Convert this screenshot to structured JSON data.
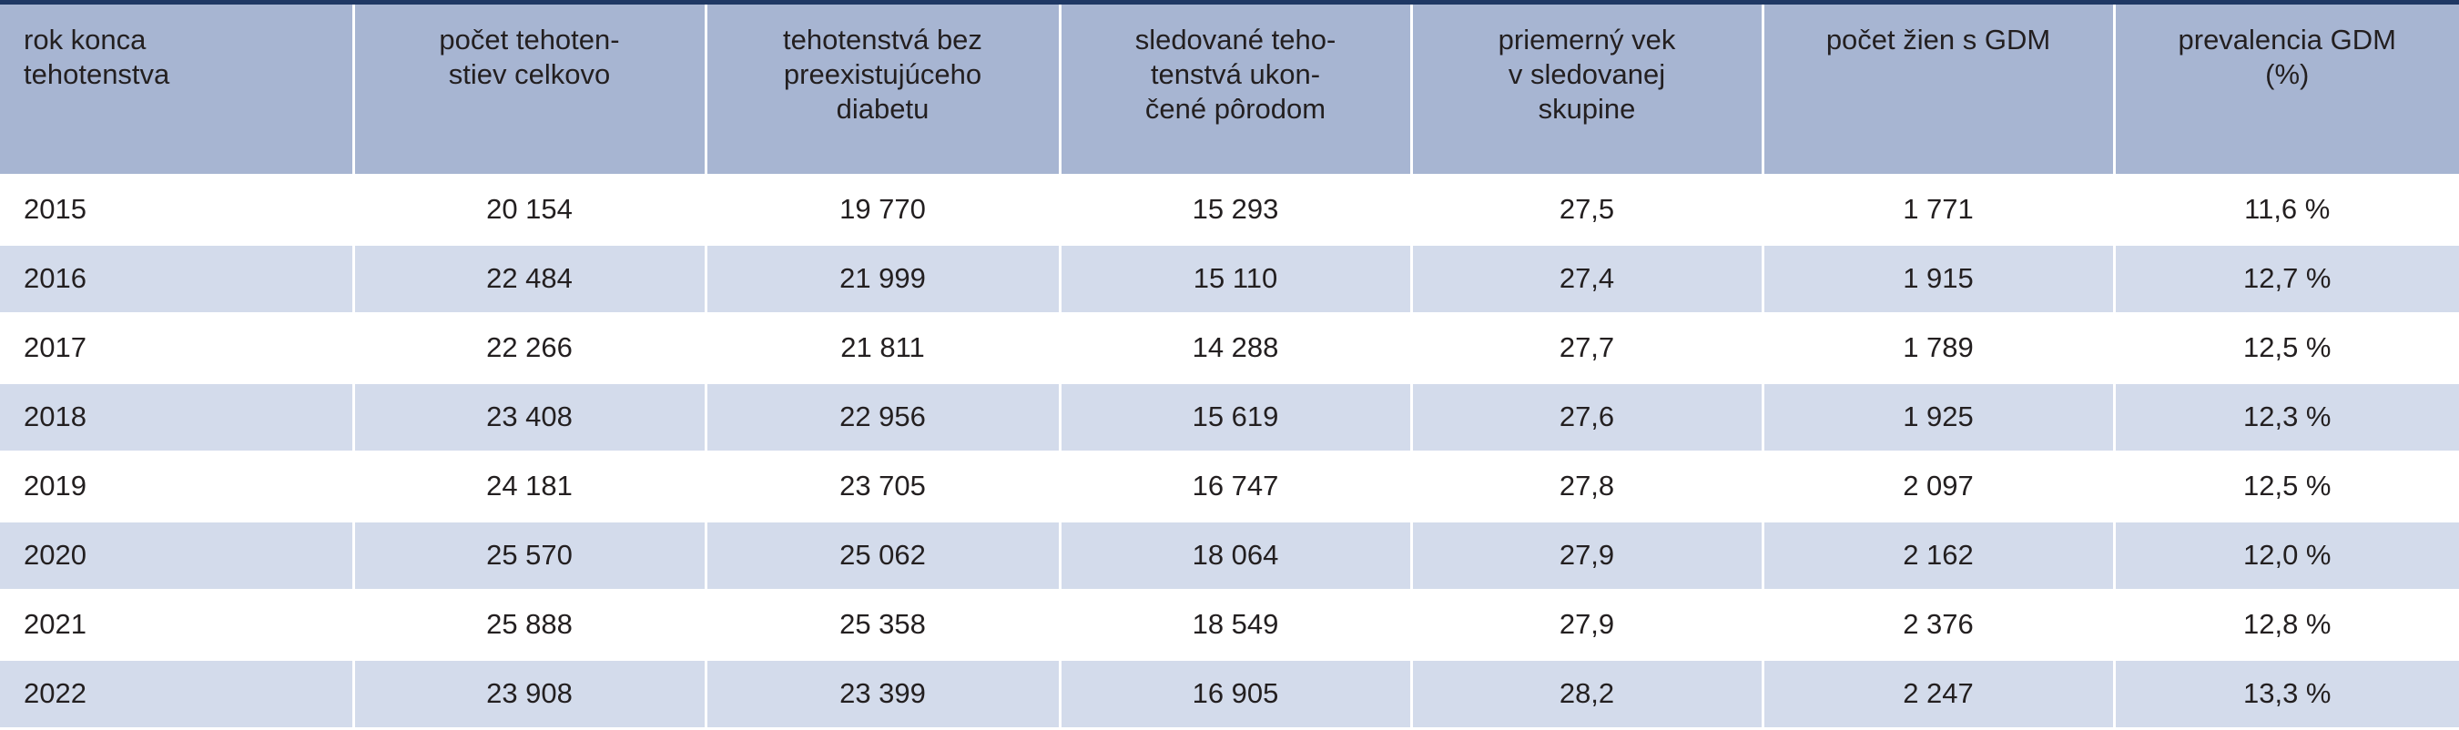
{
  "table": {
    "header": [
      [
        "rok konca",
        "tehotenstva"
      ],
      [
        "počet tehoten-",
        "stiev celkovo"
      ],
      [
        "tehotenstvá bez",
        "preexistujúceho",
        "diabetu"
      ],
      [
        "sledované teho-",
        "tenstvá ukon-",
        "čené pôrodom"
      ],
      [
        "priemerný vek",
        "v sledovanej",
        "skupine"
      ],
      [
        "počet žien s GDM"
      ],
      [
        "prevalencia GDM",
        "(%)"
      ]
    ],
    "rows": [
      [
        "2015",
        "20 154",
        "19 770",
        "15 293",
        "27,5",
        "1 771",
        "11,6 %"
      ],
      [
        "2016",
        "22 484",
        "21 999",
        "15 110",
        "27,4",
        "1 915",
        "12,7 %"
      ],
      [
        "2017",
        "22 266",
        "21 811",
        "14 288",
        "27,7",
        "1 789",
        "12,5 %"
      ],
      [
        "2018",
        "23 408",
        "22 956",
        "15 619",
        "27,6",
        "1 925",
        "12,3 %"
      ],
      [
        "2019",
        "24 181",
        "23 705",
        "16 747",
        "27,8",
        "2 097",
        "12,5 %"
      ],
      [
        "2020",
        "25 570",
        "25 062",
        "18 064",
        "27,9",
        "2 162",
        "12,0 %"
      ],
      [
        "2021",
        "25 888",
        "25 358",
        "18 549",
        "27,9",
        "2 376",
        "12,8 %"
      ],
      [
        "2022",
        "23 908",
        "23 399",
        "16 905",
        "28,2",
        "2 247",
        "13,3 %"
      ]
    ]
  }
}
